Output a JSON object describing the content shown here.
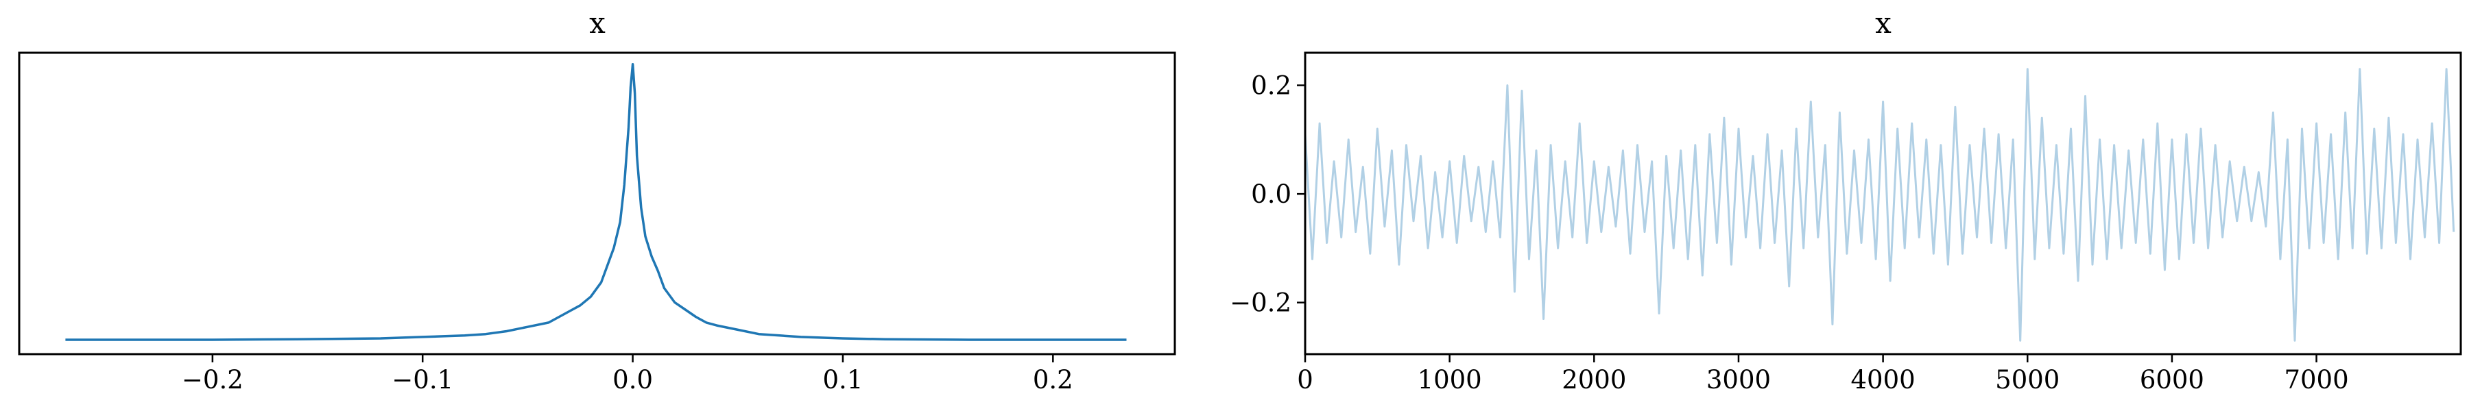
{
  "chart_data": [
    {
      "type": "line",
      "title": "x",
      "xlabel": "",
      "ylabel": "",
      "xlim": [
        -0.292,
        0.258
      ],
      "ylim": [
        -0.01,
        1.04
      ],
      "x_ticks": [
        "−0.2",
        "−0.1",
        "0.0",
        "0.1",
        "0.2"
      ],
      "x_tick_values": [
        -0.2,
        -0.1,
        0.0,
        0.1,
        0.2
      ],
      "y_ticks_visible": false,
      "grid": false,
      "color": "#1f77b4",
      "series": [
        {
          "x": [
            -0.27,
            -0.24,
            -0.2,
            -0.16,
            -0.12,
            -0.1,
            -0.08,
            -0.07,
            -0.06,
            -0.05,
            -0.04,
            -0.035,
            -0.03,
            -0.025,
            -0.02,
            -0.015,
            -0.012,
            -0.009,
            -0.006,
            -0.004,
            -0.002,
            -0.001,
            0.0,
            0.001,
            0.002,
            0.004,
            0.006,
            0.009,
            0.012,
            0.015,
            0.02,
            0.025,
            0.03,
            0.035,
            0.04,
            0.05,
            0.06,
            0.07,
            0.08,
            0.1,
            0.12,
            0.16,
            0.2,
            0.235
          ],
          "y": [
            0.04,
            0.04,
            0.04,
            0.042,
            0.045,
            0.05,
            0.055,
            0.06,
            0.07,
            0.085,
            0.1,
            0.12,
            0.14,
            0.16,
            0.19,
            0.24,
            0.3,
            0.36,
            0.45,
            0.58,
            0.78,
            0.92,
            1.0,
            0.9,
            0.68,
            0.5,
            0.4,
            0.33,
            0.28,
            0.22,
            0.17,
            0.145,
            0.12,
            0.1,
            0.09,
            0.075,
            0.06,
            0.055,
            0.05,
            0.045,
            0.042,
            0.04,
            0.04,
            0.04
          ]
        }
      ]
    },
    {
      "type": "line",
      "title": "x",
      "xlabel": "",
      "ylabel": "",
      "xlim": [
        0,
        7999
      ],
      "ylim": [
        -0.295,
        0.26
      ],
      "x_ticks": [
        "0",
        "1000",
        "2000",
        "3000",
        "4000",
        "5000",
        "6000",
        "7000"
      ],
      "x_tick_values": [
        0,
        1000,
        2000,
        3000,
        4000,
        5000,
        6000,
        7000
      ],
      "y_ticks": [
        "0.2",
        "0.0",
        "−0.2"
      ],
      "y_tick_values": [
        0.2,
        0.0,
        -0.2
      ],
      "grid": false,
      "color": "#1f77b4",
      "opacity": 0.35,
      "series": [
        {
          "x_start": 0,
          "x_step": 50,
          "y": [
            0.11,
            -0.12,
            0.13,
            -0.09,
            0.06,
            -0.08,
            0.1,
            -0.07,
            0.05,
            -0.11,
            0.12,
            -0.06,
            0.08,
            -0.13,
            0.09,
            -0.05,
            0.07,
            -0.1,
            0.04,
            -0.08,
            0.06,
            -0.09,
            0.07,
            -0.05,
            0.05,
            -0.07,
            0.06,
            -0.08,
            0.2,
            -0.18,
            0.19,
            -0.12,
            0.08,
            -0.23,
            0.09,
            -0.1,
            0.06,
            -0.08,
            0.13,
            -0.09,
            0.06,
            -0.07,
            0.05,
            -0.06,
            0.08,
            -0.11,
            0.09,
            -0.07,
            0.06,
            -0.22,
            0.07,
            -0.1,
            0.08,
            -0.12,
            0.09,
            -0.15,
            0.11,
            -0.09,
            0.14,
            -0.13,
            0.12,
            -0.08,
            0.07,
            -0.1,
            0.11,
            -0.09,
            0.08,
            -0.17,
            0.12,
            -0.1,
            0.17,
            -0.08,
            0.09,
            -0.24,
            0.15,
            -0.11,
            0.08,
            -0.09,
            0.1,
            -0.12,
            0.17,
            -0.16,
            0.12,
            -0.1,
            0.13,
            -0.08,
            0.1,
            -0.11,
            0.09,
            -0.13,
            0.16,
            -0.11,
            0.09,
            -0.08,
            0.12,
            -0.09,
            0.11,
            -0.1,
            0.1,
            -0.27,
            0.23,
            -0.12,
            0.14,
            -0.1,
            0.09,
            -0.11,
            0.12,
            -0.16,
            0.18,
            -0.13,
            0.1,
            -0.12,
            0.09,
            -0.1,
            0.08,
            -0.09,
            0.1,
            -0.11,
            0.13,
            -0.14,
            0.1,
            -0.12,
            0.11,
            -0.09,
            0.12,
            -0.1,
            0.09,
            -0.08,
            0.06,
            -0.05,
            0.05,
            -0.05,
            0.04,
            -0.06,
            0.15,
            -0.12,
            0.1,
            -0.27,
            0.12,
            -0.1,
            0.13,
            -0.09,
            0.11,
            -0.12,
            0.15,
            -0.1,
            0.23,
            -0.11,
            0.12,
            -0.1,
            0.14,
            -0.09,
            0.11,
            -0.12,
            0.1,
            -0.08,
            0.13,
            -0.09,
            0.23,
            -0.07
          ]
        }
      ]
    }
  ]
}
